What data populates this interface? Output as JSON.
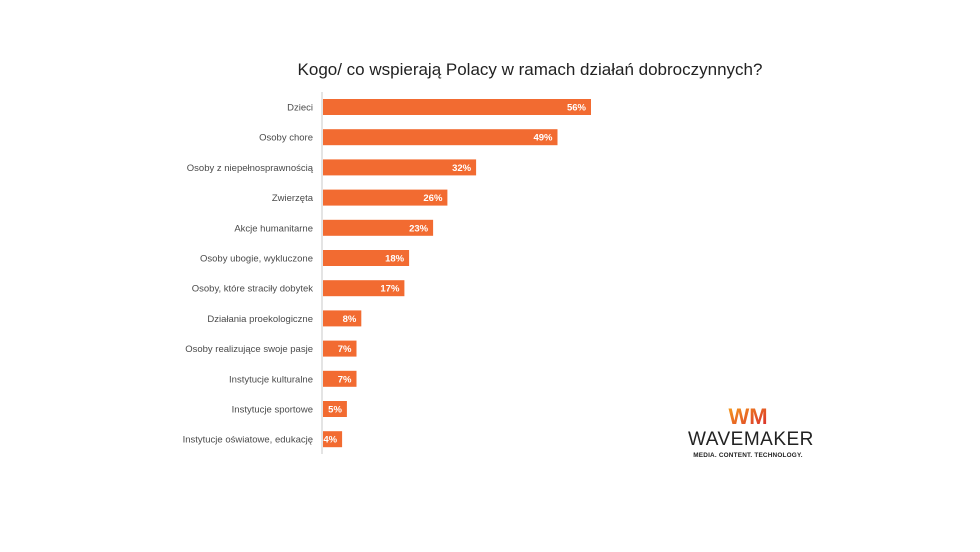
{
  "colors": {
    "bar": "#F26B31",
    "axis": "#c8c8c8",
    "label_text": "#4a4a4a",
    "value_text": "#ffffff"
  },
  "chart_data": {
    "type": "bar",
    "orientation": "horizontal",
    "title": "Kogo/ co wspierają Polacy w ramach działań dobroczynnych?",
    "categories": [
      "Dzieci",
      "Osoby chore",
      "Osoby z niepełnosprawnością",
      "Zwierzęta",
      "Akcje humanitarne",
      "Osoby ubogie, wykluczone",
      "Osoby, które straciły dobytek",
      "Działania proekologiczne",
      "Osoby realizujące swoje pasje",
      "Instytucje kulturalne",
      "Instytucje sportowe",
      "Instytucje oświatowe, edukację"
    ],
    "values": [
      56,
      49,
      32,
      26,
      23,
      18,
      17,
      8,
      7,
      7,
      5,
      4
    ],
    "value_labels": [
      "56%",
      "49%",
      "32%",
      "26%",
      "23%",
      "18%",
      "17%",
      "8%",
      "7%",
      "7%",
      "5%",
      "4%"
    ],
    "unit": "%",
    "xlabel": "",
    "ylabel": "",
    "grid": false
  },
  "logo": {
    "mark": "WM",
    "brand": "WAVEMAKER",
    "tagline": "MEDIA. CONTENT. TECHNOLOGY."
  }
}
